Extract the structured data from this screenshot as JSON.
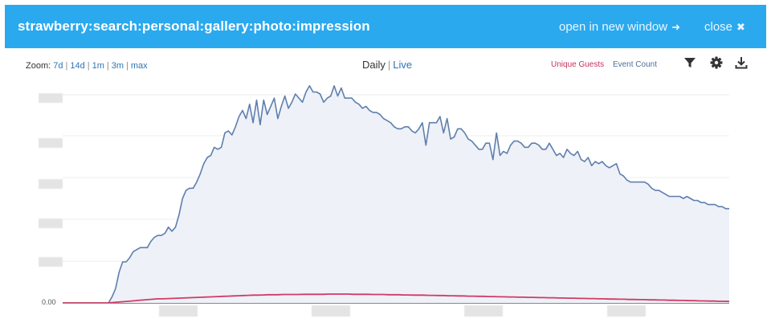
{
  "header": {
    "title": "strawberry:search:personal:gallery:photo:impression",
    "open_label": "open in new window",
    "open_icon": "arrow-right-icon",
    "close_label": "close",
    "close_icon": "close-x-icon"
  },
  "zoom": {
    "label": "Zoom:",
    "options": [
      "7d",
      "14d",
      "1m",
      "3m",
      "max"
    ]
  },
  "view": {
    "active": "Daily",
    "other": "Live"
  },
  "legend": {
    "unique_guests": "Unique Guests",
    "event_count": "Event Count"
  },
  "colors": {
    "header_bg": "#2aa9ef",
    "event_count": "#5f7fad",
    "event_fill": "#eef1f8",
    "unique_guests": "#d23a63",
    "link": "#2f74b5"
  },
  "chart_data": {
    "type": "line",
    "y_zero_label": "0.00",
    "y_gridlines": 6,
    "series": [
      {
        "name": "Event Count",
        "values": [
          0,
          0,
          0,
          0,
          0,
          0,
          0,
          0,
          0,
          0,
          0,
          0,
          0,
          0,
          3,
          7,
          15,
          20,
          20,
          22,
          25,
          26,
          27,
          27,
          27,
          30,
          32,
          33,
          33,
          34,
          37,
          35,
          37,
          43,
          51,
          55,
          56,
          56,
          59,
          63,
          68,
          71,
          72,
          76,
          75,
          76,
          83,
          84,
          82,
          86,
          91,
          94,
          90,
          97,
          88,
          99,
          87,
          99,
          92,
          96,
          100,
          90,
          96,
          101,
          95,
          98,
          102,
          100,
          98,
          103,
          106,
          103,
          103,
          102,
          98,
          100,
          101,
          106,
          101,
          105,
          100,
          100,
          100,
          98,
          97,
          95,
          96,
          94,
          93,
          93,
          92,
          90,
          89,
          88,
          86,
          85,
          85,
          86,
          86,
          84,
          83,
          85,
          88,
          77,
          88,
          88,
          88,
          91,
          83,
          90,
          80,
          81,
          85,
          85,
          83,
          80,
          79,
          77,
          75,
          75,
          78,
          78,
          70,
          83,
          72,
          74,
          73,
          77,
          79,
          79,
          78,
          76,
          76,
          78,
          78,
          77,
          75,
          75,
          78,
          75,
          72,
          73,
          71,
          75,
          73,
          72,
          74,
          70,
          69,
          71,
          67,
          69,
          68,
          69,
          67,
          66,
          67,
          68,
          63,
          62,
          60,
          59,
          59,
          59,
          59,
          59,
          58,
          56,
          55,
          55,
          54,
          53,
          52,
          52,
          52,
          52,
          51,
          52,
          51,
          50,
          50,
          49,
          49,
          48,
          48,
          48,
          47,
          47,
          46,
          46
        ]
      },
      {
        "name": "Unique Guests",
        "values": [
          0,
          0,
          0,
          0,
          0,
          0,
          0,
          0,
          0,
          0,
          0.2,
          0.4,
          0.6,
          0.8,
          1.0,
          1.2,
          1.4,
          1.6,
          1.8,
          2.0,
          2.0,
          2.1,
          2.2,
          2.3,
          2.4,
          2.5,
          2.6,
          2.7,
          2.8,
          2.9,
          3.0,
          3.1,
          3.2,
          3.3,
          3.4,
          3.5,
          3.6,
          3.7,
          3.8,
          3.8,
          3.9,
          4.0,
          4.0,
          4.0,
          4.1,
          4.1,
          4.1,
          4.1,
          4.2,
          4.2,
          4.2,
          4.2,
          4.2,
          4.3,
          4.3,
          4.3,
          4.3,
          4.3,
          4.2,
          4.2,
          4.2,
          4.2,
          4.1,
          4.1,
          4.1,
          4.0,
          4.0,
          4.0,
          3.9,
          3.9,
          3.8,
          3.8,
          3.8,
          3.7,
          3.7,
          3.6,
          3.6,
          3.5,
          3.5,
          3.4,
          3.4,
          3.3,
          3.3,
          3.2,
          3.2,
          3.1,
          3.1,
          3.0,
          3.0,
          2.9,
          2.9,
          2.8,
          2.8,
          2.7,
          2.7,
          2.6,
          2.6,
          2.5,
          2.5,
          2.4,
          2.4,
          2.3,
          2.3,
          2.2,
          2.2,
          2.1,
          2.1,
          2.0,
          2.0,
          1.9,
          1.9,
          1.8,
          1.8,
          1.7,
          1.7,
          1.6,
          1.6,
          1.5,
          1.5,
          1.4,
          1.4,
          1.3,
          1.3,
          1.2,
          1.2,
          1.1,
          1.1,
          1.0,
          1.0,
          0.9,
          0.9,
          0.8,
          0.8,
          0.7
        ]
      }
    ],
    "ylim": [
      0,
      102
    ],
    "legend_position": "top-right",
    "grid": true
  }
}
